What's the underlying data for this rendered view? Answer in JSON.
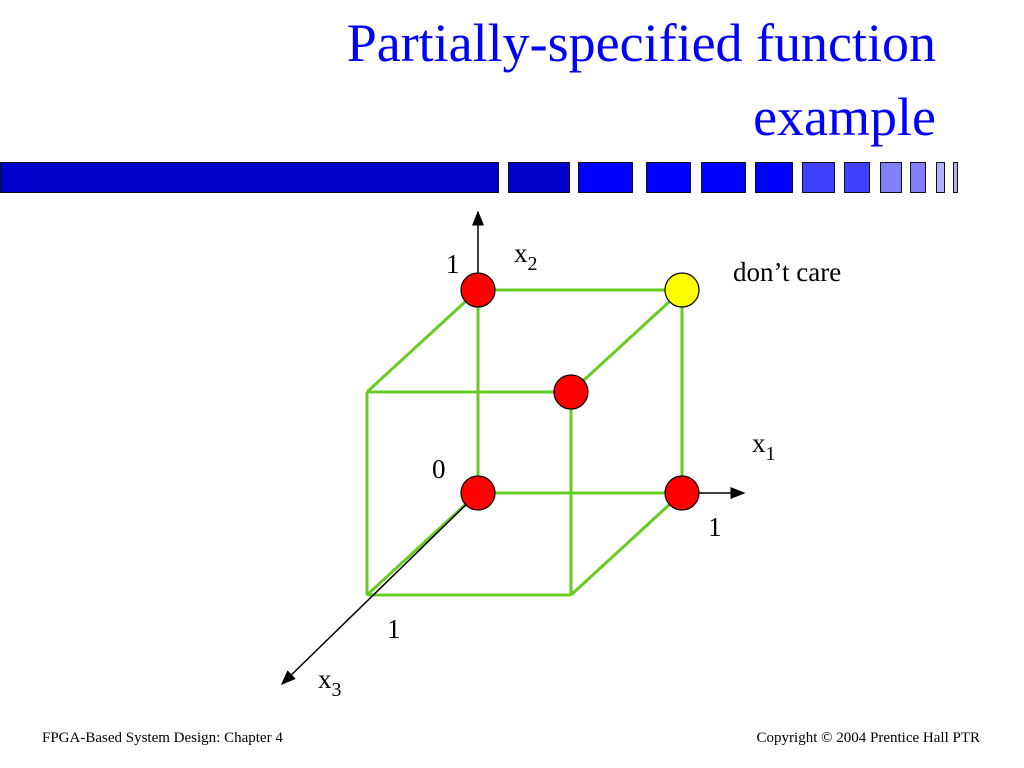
{
  "title_lines": [
    "Partially-specified function",
    "example"
  ],
  "decor_bar_colors": [
    "#0000cc",
    "#0000cc",
    "#0000ff",
    "#0000ff",
    "#0000ff",
    "#0000ff",
    "#4040ff",
    "#4040ff",
    "#8080ff",
    "#8080ff",
    "#b0b0ff",
    "#b0b0ff"
  ],
  "diagram": {
    "axis_labels": {
      "x1": "x",
      "x1_sub": "1",
      "x2": "x",
      "x2_sub": "2",
      "x3": "x",
      "x3_sub": "3"
    },
    "tick_labels": {
      "x2_one": "1",
      "origin": "0",
      "x1_one": "1",
      "x3_one": "1"
    },
    "annotation": "don’t care",
    "colors": {
      "edge": "#66cc22",
      "on": "#ff0000",
      "dont_care": "#ffff00"
    },
    "vertices": [
      {
        "x1": 0,
        "x2": 1,
        "x3": 0,
        "value": "on"
      },
      {
        "x1": 1,
        "x2": 1,
        "x3": 0,
        "value": "dont_care"
      },
      {
        "x1": 0,
        "x2": 0,
        "x3": 0,
        "value": "on"
      },
      {
        "x1": 1,
        "x2": 0,
        "x3": 0,
        "value": "on"
      },
      {
        "x1": 1,
        "x2": 1,
        "x3": 1,
        "value": "on"
      }
    ]
  },
  "footer": {
    "left": "FPGA-Based System Design: Chapter 4",
    "right": "Copyright © 2004 Prentice Hall PTR"
  }
}
